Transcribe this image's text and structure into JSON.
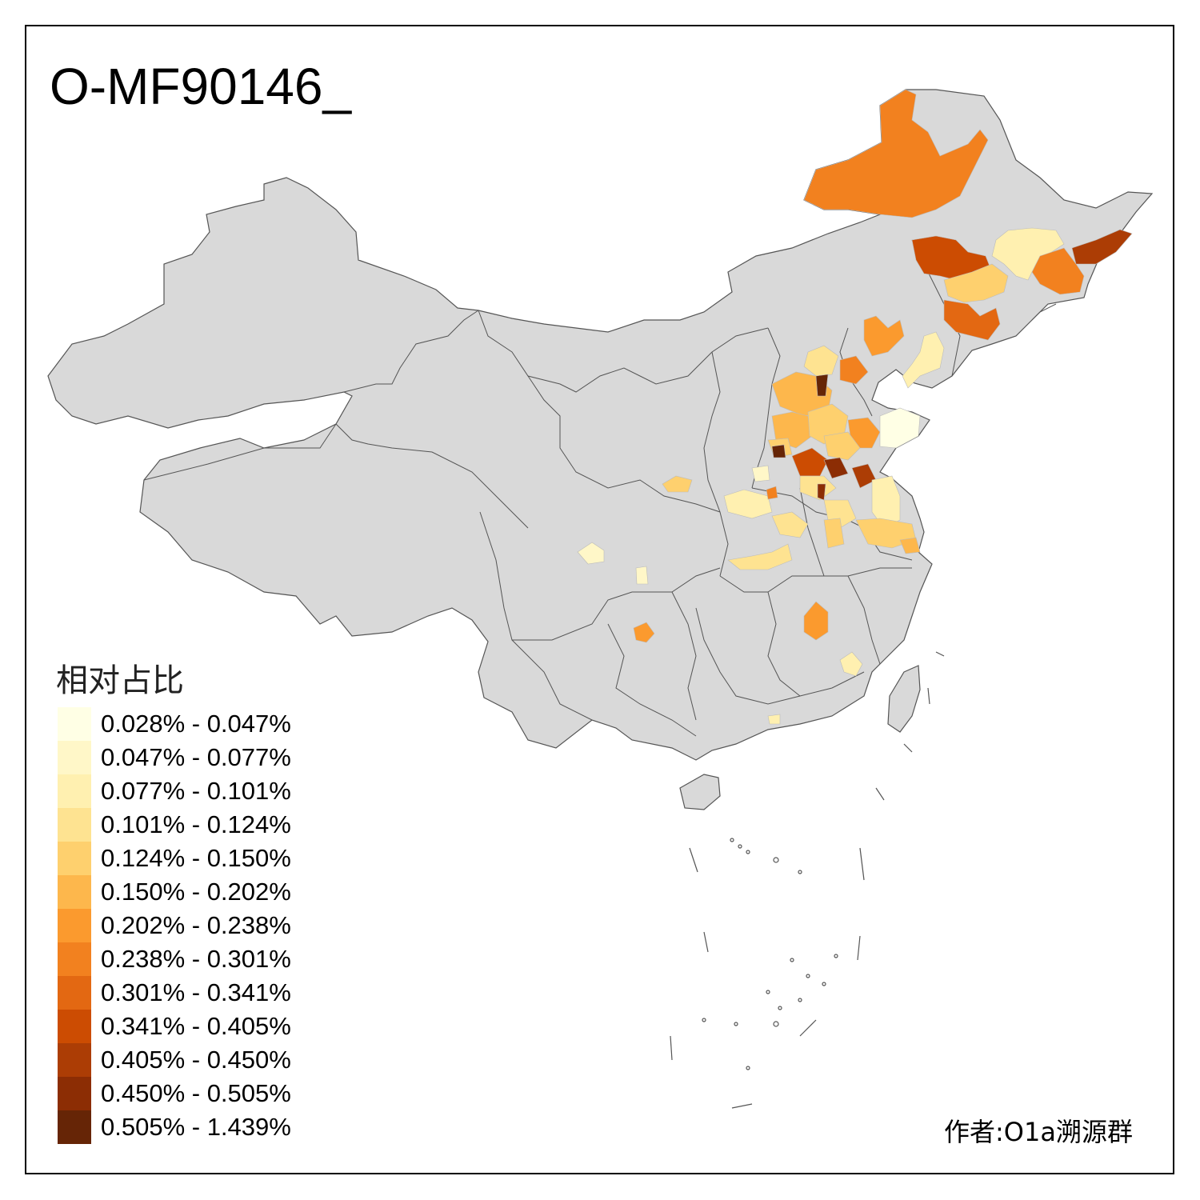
{
  "title": "O-MF90146_",
  "legend": {
    "title": "相对占比",
    "bins": [
      {
        "label": "0.028% - 0.047%",
        "color": "#ffffe5"
      },
      {
        "label": "0.047% - 0.077%",
        "color": "#fff7c8"
      },
      {
        "label": "0.077% - 0.101%",
        "color": "#fff0b0"
      },
      {
        "label": "0.101% - 0.124%",
        "color": "#fee391"
      },
      {
        "label": "0.124% - 0.150%",
        "color": "#fed06e"
      },
      {
        "label": "0.150% - 0.202%",
        "color": "#fdb74c"
      },
      {
        "label": "0.202% - 0.238%",
        "color": "#fb9a2e"
      },
      {
        "label": "0.238% - 0.301%",
        "color": "#f2811f"
      },
      {
        "label": "0.301% - 0.341%",
        "color": "#e36812"
      },
      {
        "label": "0.341% - 0.405%",
        "color": "#cc4c02"
      },
      {
        "label": "0.405% - 0.450%",
        "color": "#ac3d05"
      },
      {
        "label": "0.450% - 0.505%",
        "color": "#8c2d04"
      },
      {
        "label": "0.505% - 1.439%",
        "color": "#662506"
      }
    ]
  },
  "author": "作者:O1a溯源群",
  "colors": {
    "land": "#d9d9d9",
    "border": "#555555",
    "frame": "#000000"
  }
}
